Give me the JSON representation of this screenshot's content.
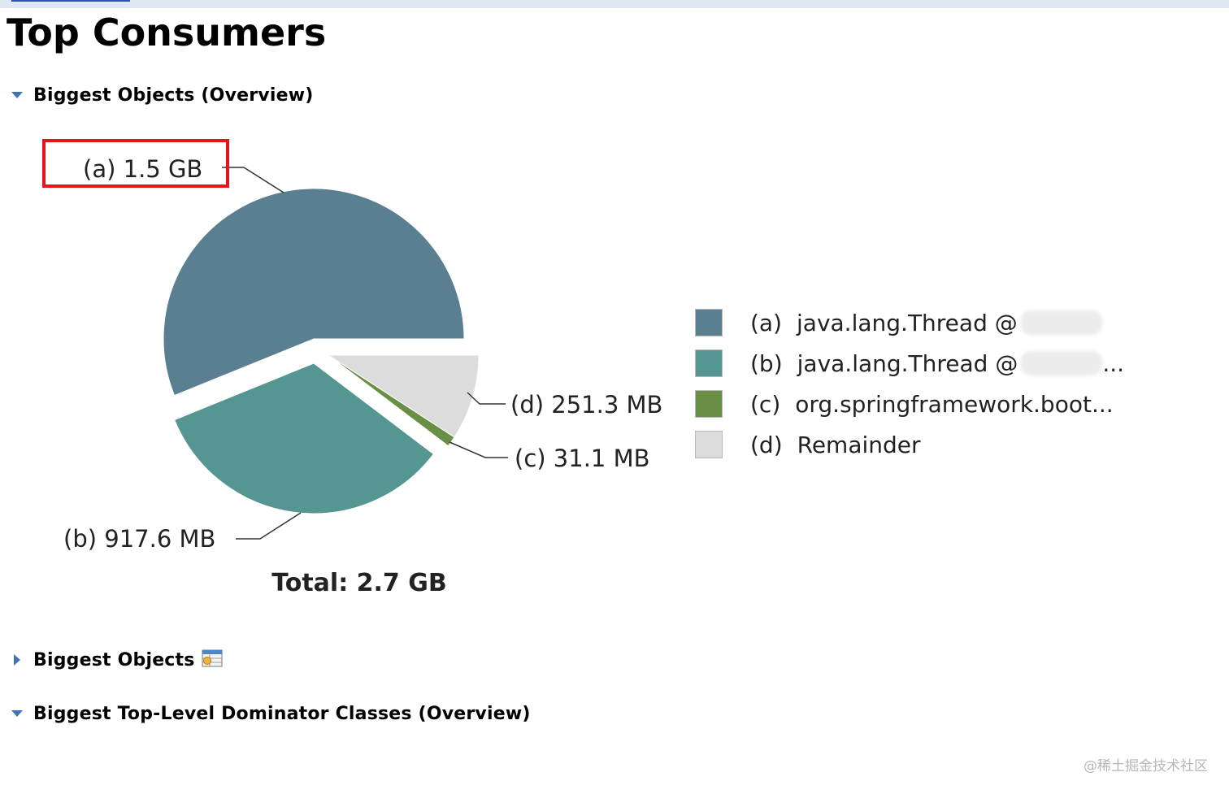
{
  "page": {
    "title": "Top Consumers"
  },
  "sections": [
    {
      "label": "Biggest Objects (Overview)",
      "expanded": true
    },
    {
      "label": "Biggest Objects",
      "expanded": false,
      "icon": "table-icon"
    },
    {
      "label": "Biggest Top-Level Dominator Classes (Overview)",
      "expanded": true
    }
  ],
  "chart_data": {
    "type": "pie",
    "total_label": "Total: 2.7 GB",
    "slices": [
      {
        "id": "(a)",
        "value_label": "1.5 GB",
        "value_mb": 1536,
        "color": "#597f91",
        "legend": "java.lang.Thread @"
      },
      {
        "id": "(b)",
        "value_label": "917.6 MB",
        "value_mb": 917.6,
        "color": "#559592",
        "legend": "java.lang.Thread @",
        "legend_suffix": "..."
      },
      {
        "id": "(c)",
        "value_label": "31.1 MB",
        "value_mb": 31.1,
        "color": "#688f45",
        "legend": "org.springframework.boot..."
      },
      {
        "id": "(d)",
        "value_label": "251.3 MB",
        "value_mb": 251.3,
        "color": "#dcdcdc",
        "legend": "Remainder"
      }
    ],
    "highlight": "(a)",
    "highlight_color": "#e8141c"
  },
  "watermark": "@稀土掘金技术社区"
}
